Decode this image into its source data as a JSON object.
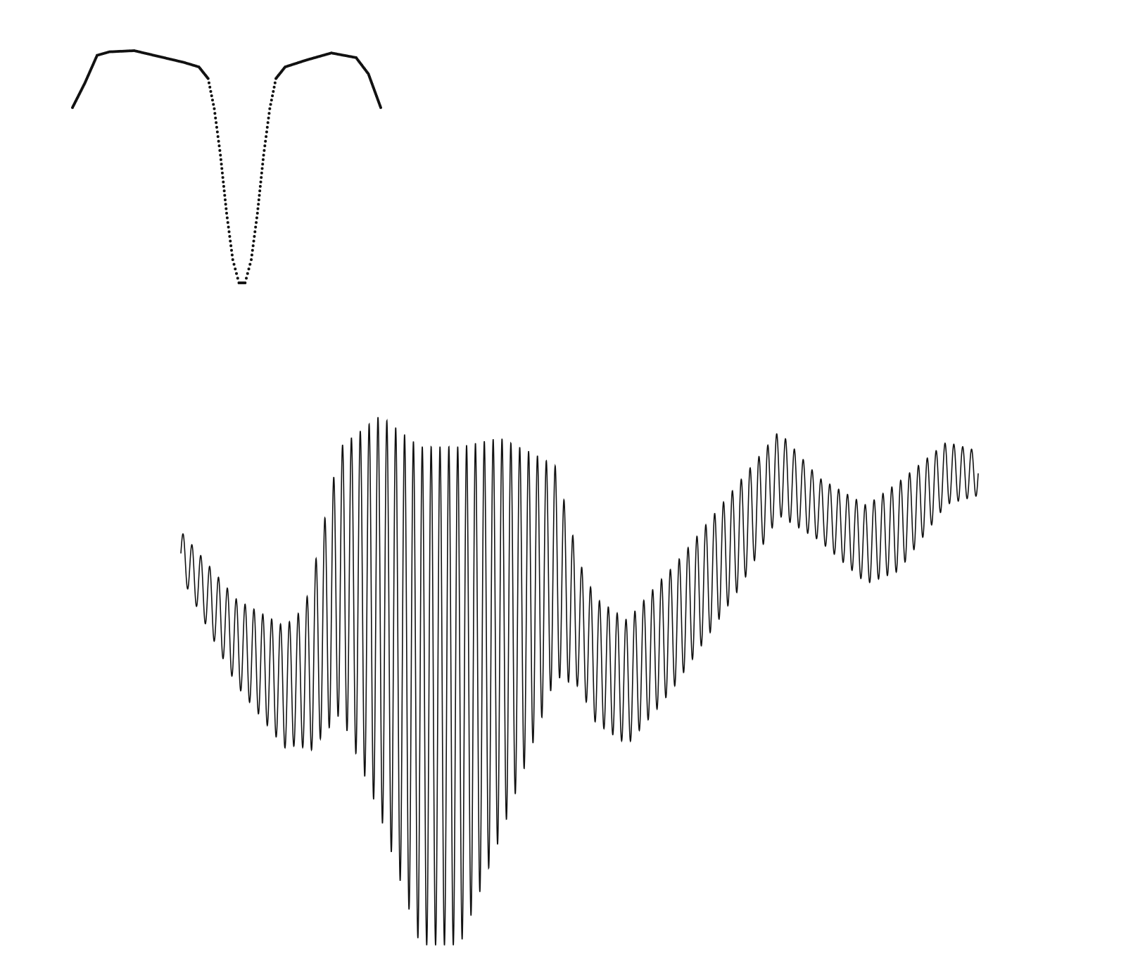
{
  "chart_data": [
    {
      "type": "scatter",
      "title": "",
      "xlabel": "",
      "ylabel": "",
      "axes_visible": false,
      "grid": false,
      "legend": "none",
      "marker": "small dot",
      "color": "#111111",
      "description_shape": "two dense arcs joined by a sparse V-shaped dip",
      "series": [
        {
          "points": [
            [
              0.0,
              0.755
            ],
            [
              0.04,
              0.86
            ],
            [
              0.08,
              0.98
            ],
            [
              0.12,
              0.995
            ],
            [
              0.2,
              1.0
            ],
            [
              0.28,
              0.975
            ],
            [
              0.36,
              0.95
            ],
            [
              0.41,
              0.93
            ],
            [
              0.44,
              0.88
            ],
            [
              0.46,
              0.75
            ],
            [
              0.48,
              0.55
            ],
            [
              0.5,
              0.3
            ],
            [
              0.52,
              0.1
            ],
            [
              0.54,
              0.0
            ],
            [
              0.56,
              0.0
            ],
            [
              0.58,
              0.1
            ],
            [
              0.6,
              0.3
            ],
            [
              0.62,
              0.55
            ],
            [
              0.64,
              0.75
            ],
            [
              0.66,
              0.88
            ],
            [
              0.69,
              0.93
            ],
            [
              0.76,
              0.96
            ],
            [
              0.84,
              0.99
            ],
            [
              0.92,
              0.97
            ],
            [
              0.96,
              0.9
            ],
            [
              1.0,
              0.755
            ]
          ]
        }
      ]
    },
    {
      "type": "line",
      "title": "",
      "xlabel": "",
      "ylabel": "",
      "axes_visible": false,
      "grid": false,
      "legend": "none",
      "color": "#111111",
      "cycles": 90,
      "envelope": {
        "center": [
          [
            0.0,
            0.74
          ],
          [
            0.07,
            0.54
          ],
          [
            0.13,
            0.44
          ],
          [
            0.16,
            0.47
          ],
          [
            0.2,
            0.68
          ],
          [
            0.25,
            0.6
          ],
          [
            0.3,
            0.42
          ],
          [
            0.35,
            0.42
          ],
          [
            0.4,
            0.55
          ],
          [
            0.47,
            0.7
          ],
          [
            0.52,
            0.5
          ],
          [
            0.56,
            0.45
          ],
          [
            0.62,
            0.58
          ],
          [
            0.7,
            0.78
          ],
          [
            0.75,
            0.92
          ],
          [
            0.8,
            0.84
          ],
          [
            0.86,
            0.76
          ],
          [
            0.9,
            0.8
          ],
          [
            0.96,
            0.92
          ],
          [
            1.0,
            0.92
          ]
        ],
        "amplitude": [
          [
            0.0,
            0.05
          ],
          [
            0.15,
            0.15
          ],
          [
            0.2,
            0.3
          ],
          [
            0.25,
            0.45
          ],
          [
            0.3,
            0.56
          ],
          [
            0.35,
            0.56
          ],
          [
            0.4,
            0.45
          ],
          [
            0.45,
            0.3
          ],
          [
            0.5,
            0.14
          ],
          [
            0.6,
            0.14
          ],
          [
            0.7,
            0.12
          ],
          [
            0.8,
            0.07
          ],
          [
            0.9,
            0.1
          ],
          [
            1.0,
            0.05
          ]
        ]
      }
    }
  ]
}
